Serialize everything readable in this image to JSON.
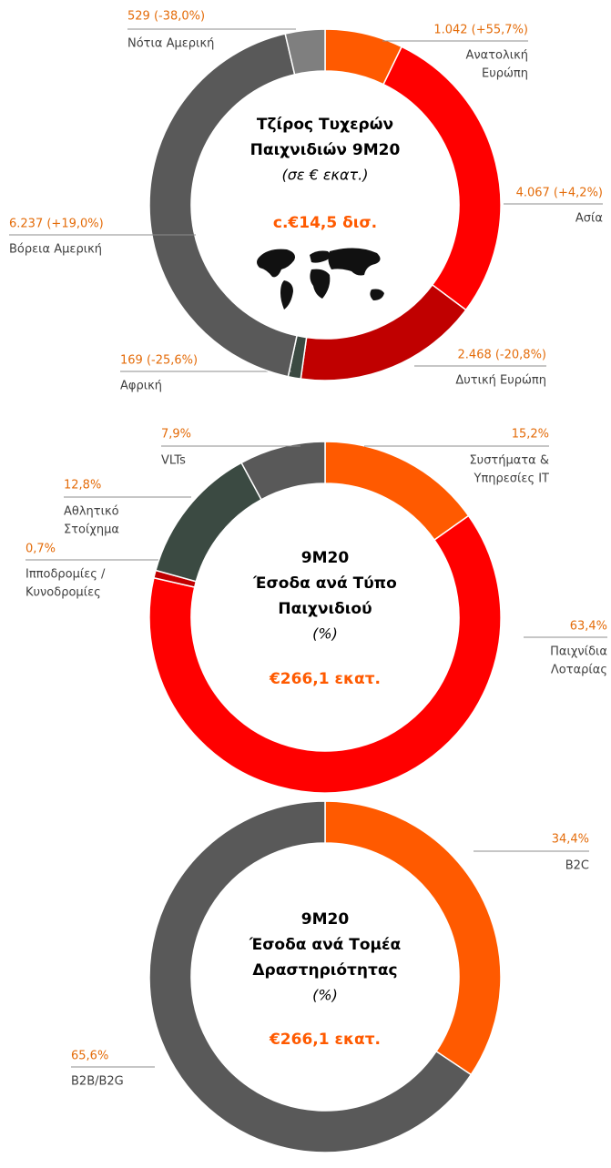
{
  "chart_data": [
    {
      "type": "pie",
      "title": [
        "Τζίρος Τυχερών",
        "Παιχνιδιών 9M20"
      ],
      "subtitle": "(σε € εκατ.)",
      "total": "c.€14,5 δισ.",
      "categories": [
        [
          "Ανατολική",
          "Ευρώπη"
        ],
        [
          "Ασία"
        ],
        [
          "Δυτική Ευρώπη"
        ],
        [
          "Αφρική"
        ],
        [
          "Βόρεια Αμερική"
        ],
        [
          "Νότια Αμερική"
        ]
      ],
      "values": [
        1042,
        4067,
        2468,
        169,
        6237,
        529
      ],
      "value_labels": [
        "1.042 (+55,7%)",
        "4.067 (+4,2%)",
        "2.468 (-20,8%)",
        "169 (-25,6%)",
        "6.237 (+19,0%)",
        "529 (-38,0%)"
      ],
      "colors": [
        "#ff5a00",
        "#ff0000",
        "#c00000",
        "#3b4a42",
        "#595959",
        "#7f7f7f"
      ]
    },
    {
      "type": "pie",
      "title": [
        "9M20",
        "Έσοδα ανά Τύπο",
        "Παιχνιδιού"
      ],
      "subtitle": "(%)",
      "total": "€266,1 εκατ.",
      "categories": [
        [
          "Συστήματα &",
          "Υπηρεσίες IT"
        ],
        [
          "Παιχνίδια",
          "Λοταρίας"
        ],
        [
          "Ιπποδρομίες /",
          "Κυνοδρομίες"
        ],
        [
          "Αθλητικό",
          "Στοίχημα"
        ],
        [
          "VLTs"
        ]
      ],
      "values": [
        15.2,
        63.4,
        0.7,
        12.8,
        7.9
      ],
      "value_labels": [
        "15,2%",
        "63,4%",
        "0,7%",
        "12,8%",
        "7,9%"
      ],
      "colors": [
        "#ff5a00",
        "#ff0000",
        "#c00000",
        "#3b4a42",
        "#595959"
      ]
    },
    {
      "type": "pie",
      "title": [
        "9M20",
        "Έσοδα ανά Τομέα",
        "Δραστηριότητας"
      ],
      "subtitle": "(%)",
      "total": "€266,1 εκατ.",
      "categories": [
        [
          "B2C"
        ],
        [
          "B2B/B2G"
        ]
      ],
      "values": [
        34.4,
        65.6
      ],
      "value_labels": [
        "34,4%",
        "65,6%"
      ],
      "colors": [
        "#ff5a00",
        "#595959"
      ]
    }
  ]
}
